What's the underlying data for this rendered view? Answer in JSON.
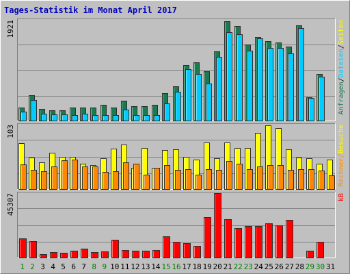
{
  "title": "Tages-Statistik im Monat April 2017",
  "colors": {
    "background": "#c0c0c0",
    "title_text": "#0000c0",
    "anfragen": "#1a7a50",
    "dateien": "#00ccff",
    "seiten": "#ffff00",
    "besuche": "#ff8800",
    "kb": "#ff0000",
    "weekend_label": "#008000",
    "weekday_label": "#000000"
  },
  "chart_data": [
    {
      "type": "bar",
      "panel": "top",
      "ymax_label": "1921",
      "ylim": [
        0,
        1921
      ],
      "categories": [
        "1",
        "2",
        "3",
        "4",
        "5",
        "6",
        "7",
        "8",
        "9",
        "10",
        "11",
        "12",
        "13",
        "14",
        "15",
        "16",
        "17",
        "18",
        "19",
        "20",
        "21",
        "22",
        "23",
        "24",
        "25",
        "26",
        "27",
        "28",
        "29",
        "30",
        "31"
      ],
      "right_labels": [
        {
          "text": "Anfragen",
          "color": "anfragen"
        },
        {
          "text": "Dateien",
          "color": "dateien"
        },
        {
          "text": "Seiten",
          "color": "seiten"
        }
      ],
      "series": [
        {
          "name": "Anfragen",
          "color": "anfragen",
          "values": [
            250,
            480,
            220,
            200,
            200,
            250,
            250,
            250,
            300,
            250,
            380,
            280,
            280,
            300,
            520,
            650,
            1060,
            1110,
            940,
            1320,
            1900,
            1800,
            1450,
            1590,
            1520,
            1490,
            1410,
            1820,
            440,
            890,
            0
          ]
        },
        {
          "name": "Dateien",
          "color": "dateien",
          "values": [
            170,
            390,
            130,
            120,
            120,
            110,
            130,
            110,
            110,
            100,
            210,
            100,
            100,
            100,
            330,
            550,
            980,
            890,
            710,
            1210,
            1690,
            1650,
            1330,
            1570,
            1390,
            1380,
            1280,
            1760,
            430,
            840,
            0
          ]
        }
      ]
    },
    {
      "type": "bar",
      "panel": "middle",
      "ymax_label": "103",
      "ylim": [
        0,
        103
      ],
      "categories": [
        "1",
        "2",
        "3",
        "4",
        "5",
        "6",
        "7",
        "8",
        "9",
        "10",
        "11",
        "12",
        "13",
        "14",
        "15",
        "16",
        "17",
        "18",
        "19",
        "20",
        "21",
        "22",
        "23",
        "24",
        "25",
        "26",
        "27",
        "28",
        "29",
        "30",
        "31"
      ],
      "right_labels": [
        {
          "text": "Rechner",
          "color": "besuche"
        },
        {
          "text": "/",
          "color": "besuche"
        },
        {
          "text": "Besuche",
          "color": "seiten"
        }
      ],
      "series": [
        {
          "name": "Seiten",
          "color": "seiten",
          "values": [
            73,
            50,
            43,
            58,
            51,
            51,
            41,
            38,
            49,
            65,
            71,
            34,
            66,
            34,
            63,
            64,
            51,
            47,
            75,
            49,
            74,
            66,
            66,
            90,
            102,
            98,
            64,
            50,
            49,
            41,
            47
          ]
        },
        {
          "name": "Besuche",
          "color": "besuche",
          "values": [
            39,
            31,
            28,
            36,
            46,
            47,
            36,
            36,
            27,
            28,
            43,
            41,
            23,
            34,
            38,
            31,
            32,
            23,
            32,
            31,
            45,
            41,
            32,
            36,
            38,
            38,
            31,
            32,
            32,
            30,
            22
          ]
        }
      ]
    },
    {
      "type": "bar",
      "panel": "bottom",
      "ymax_label": "45307",
      "ylim": [
        0,
        45307
      ],
      "categories": [
        "1",
        "2",
        "3",
        "4",
        "5",
        "6",
        "7",
        "8",
        "9",
        "10",
        "11",
        "12",
        "13",
        "14",
        "15",
        "16",
        "17",
        "18",
        "19",
        "20",
        "21",
        "22",
        "23",
        "24",
        "25",
        "26",
        "27",
        "28",
        "29",
        "30",
        "31"
      ],
      "right_labels": [
        {
          "text": "kB",
          "color": "kb"
        }
      ],
      "series": [
        {
          "name": "kB",
          "color": "kb",
          "values": [
            13700,
            11800,
            2600,
            3900,
            3500,
            4600,
            6200,
            3700,
            4100,
            12500,
            5200,
            5000,
            4600,
            5200,
            15000,
            10900,
            10300,
            8300,
            28300,
            45200,
            26900,
            20900,
            22300,
            22400,
            23900,
            22500,
            26700,
            0,
            5000,
            11200,
            0
          ]
        }
      ]
    }
  ],
  "x_labels": [
    {
      "text": "1",
      "weekend": true
    },
    {
      "text": "2",
      "weekend": true
    },
    {
      "text": "3",
      "weekend": false
    },
    {
      "text": "4",
      "weekend": false
    },
    {
      "text": "5",
      "weekend": false
    },
    {
      "text": "6",
      "weekend": false
    },
    {
      "text": "7",
      "weekend": false
    },
    {
      "text": "8",
      "weekend": true
    },
    {
      "text": "9",
      "weekend": true
    },
    {
      "text": "10",
      "weekend": false
    },
    {
      "text": "11",
      "weekend": false
    },
    {
      "text": "12",
      "weekend": false
    },
    {
      "text": "13",
      "weekend": false
    },
    {
      "text": "14",
      "weekend": false
    },
    {
      "text": "15",
      "weekend": true
    },
    {
      "text": "16",
      "weekend": true
    },
    {
      "text": "17",
      "weekend": false
    },
    {
      "text": "18",
      "weekend": false
    },
    {
      "text": "19",
      "weekend": false
    },
    {
      "text": "20",
      "weekend": false
    },
    {
      "text": "21",
      "weekend": false
    },
    {
      "text": "22",
      "weekend": true
    },
    {
      "text": "23",
      "weekend": true
    },
    {
      "text": "24",
      "weekend": false
    },
    {
      "text": "25",
      "weekend": false
    },
    {
      "text": "26",
      "weekend": false
    },
    {
      "text": "27",
      "weekend": false
    },
    {
      "text": "28",
      "weekend": false
    },
    {
      "text": "29",
      "weekend": true
    },
    {
      "text": "30",
      "weekend": true
    },
    {
      "text": "31",
      "weekend": false
    }
  ]
}
